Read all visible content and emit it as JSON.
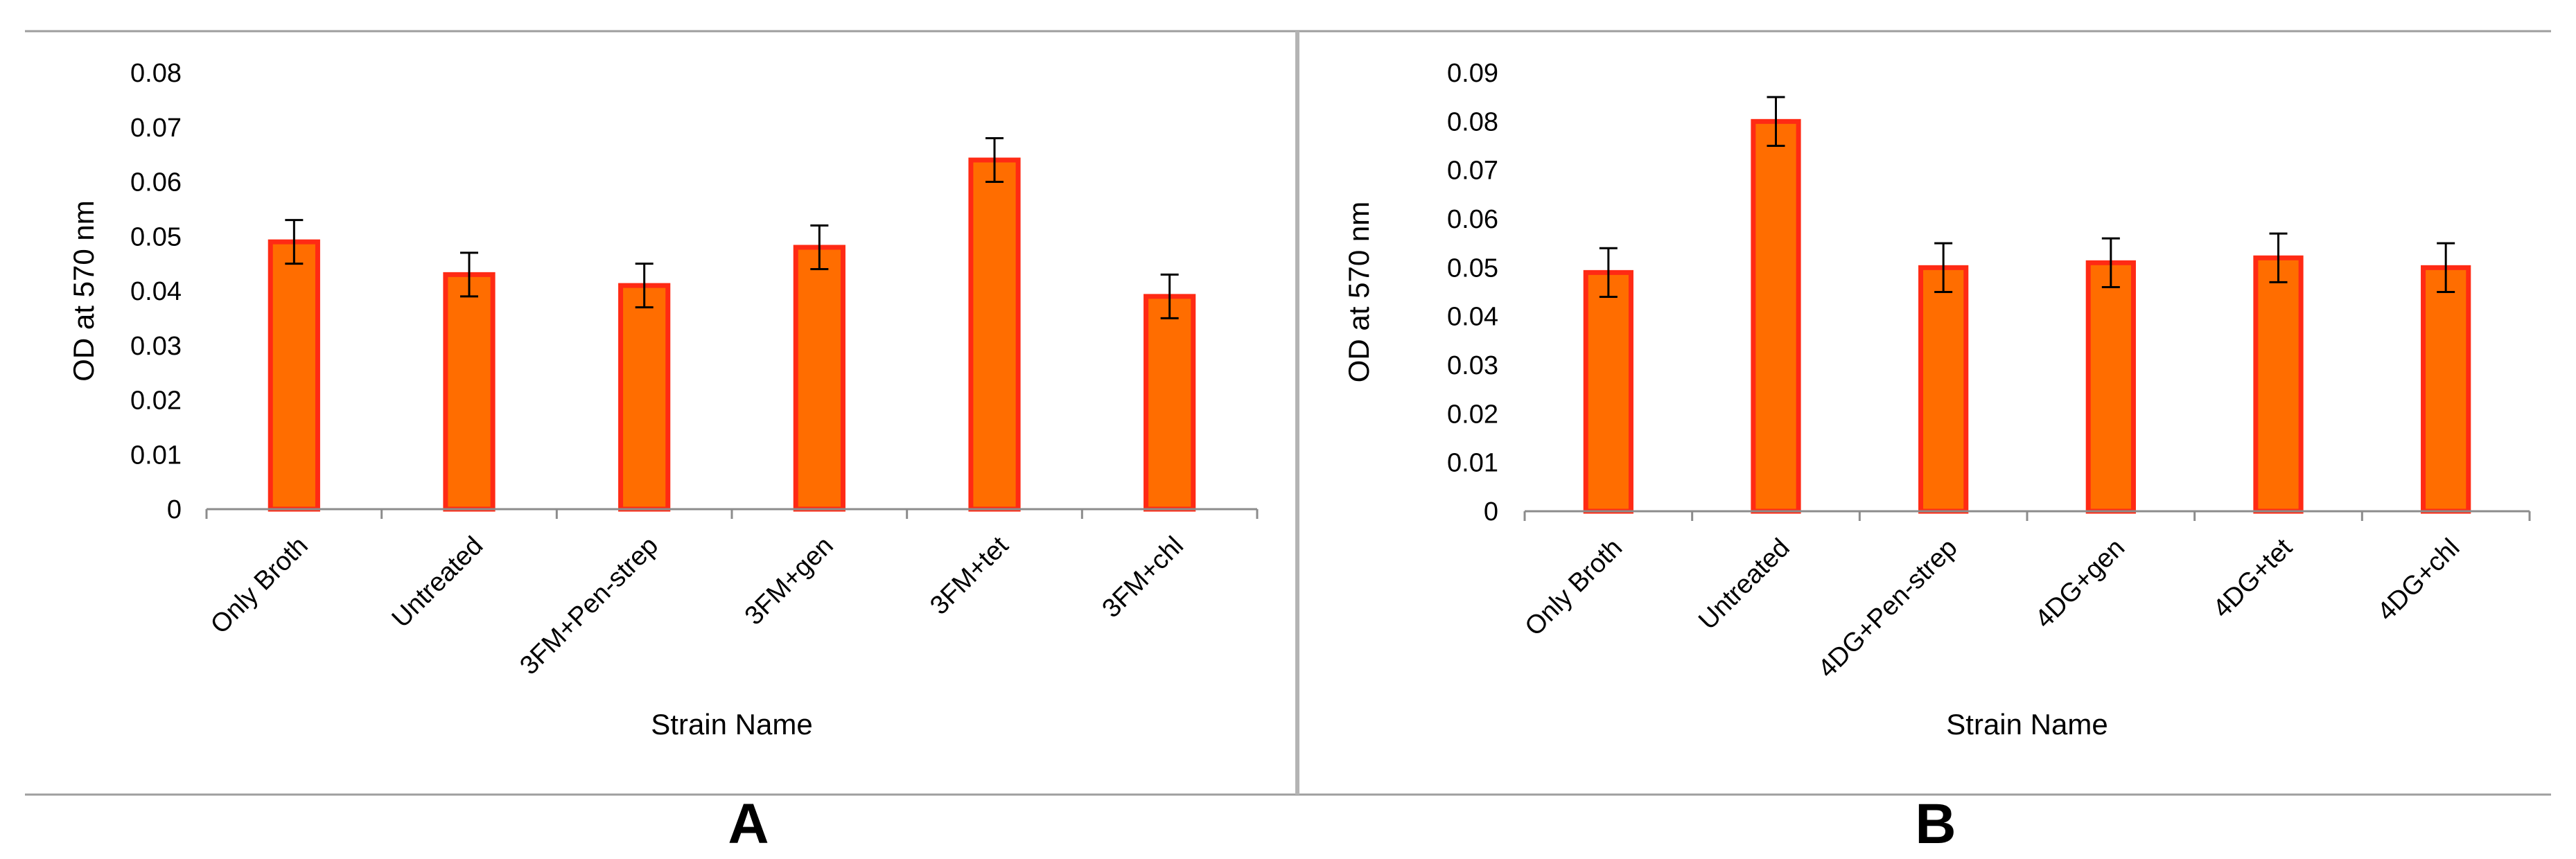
{
  "chart_data": [
    {
      "panel": "A",
      "type": "bar",
      "categories": [
        "Only Broth",
        "Untreated",
        "3FM+Pen-strep",
        "3FM+gen",
        "3FM+tet",
        "3FM+chl"
      ],
      "series": [
        {
          "values": [
            0.049,
            0.043,
            0.041,
            0.048,
            0.064,
            0.039
          ],
          "errors": [
            0.004,
            0.004,
            0.004,
            0.004,
            0.004,
            0.004
          ],
          "fill": "#ff6d00",
          "stroke": "#ff2a14"
        }
      ],
      "xlabel": "Strain Name",
      "ylabel": "OD at 570 nm",
      "ylim": [
        0,
        0.08
      ],
      "yticks": [
        "0",
        "0.01",
        "0.02",
        "0.03",
        "0.04",
        "0.05",
        "0.06",
        "0.07",
        "0.08"
      ],
      "grid": false,
      "legend": "none"
    },
    {
      "panel": "B",
      "type": "bar",
      "categories": [
        "Only Broth",
        "Untreated",
        "4DG+Pen-strep",
        "4DG+gen",
        "4DG+tet",
        "4DG+chl"
      ],
      "series": [
        {
          "values": [
            0.049,
            0.08,
            0.05,
            0.051,
            0.052,
            0.05
          ],
          "errors": [
            0.005,
            0.005,
            0.005,
            0.005,
            0.005,
            0.005
          ],
          "fill": "#ff6d00",
          "stroke": "#ff2a14"
        }
      ],
      "xlabel": "Strain Name",
      "ylabel": "OD at 570 nm",
      "ylim": [
        0,
        0.09
      ],
      "yticks": [
        "0",
        "0.01",
        "0.02",
        "0.03",
        "0.04",
        "0.05",
        "0.06",
        "0.07",
        "0.08",
        "0.09"
      ],
      "grid": false,
      "legend": "none"
    }
  ],
  "panel_labels": [
    "A",
    "B"
  ],
  "colors": {
    "bar_fill": "#ff6d00",
    "bar_stroke": "#ff2a14",
    "frame": "#9e9e9e",
    "axis": "#8c8c8c",
    "error_bar": "#000000"
  }
}
